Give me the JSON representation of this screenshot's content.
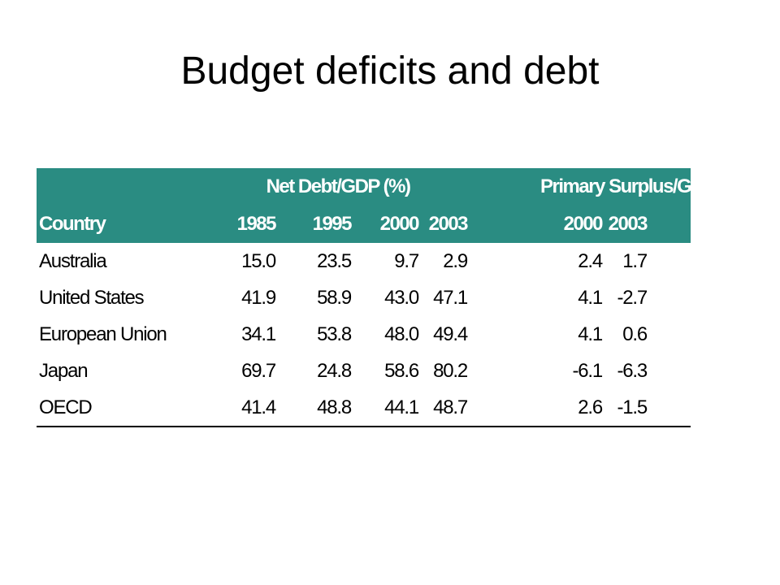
{
  "slide": {
    "title": "Budget deficits and debt"
  },
  "table": {
    "group_headers": {
      "net_debt": "Net Debt/GDP (%)",
      "primary_surplus": "Primary Surplus/GDP (%)"
    },
    "columns": {
      "country": "Country",
      "nd_1985": "1985",
      "nd_1995": "1995",
      "nd_2000": "2000",
      "nd_2003": "2003",
      "ps_2000": "2000",
      "ps_2003": "2003"
    },
    "rows": [
      {
        "country": "Australia",
        "nd_1985": "15.0",
        "nd_1995": "23.5",
        "nd_2000": "9.7",
        "nd_2003": "2.9",
        "ps_2000": "2.4",
        "ps_2003": "1.7"
      },
      {
        "country": "United States",
        "nd_1985": "41.9",
        "nd_1995": "58.9",
        "nd_2000": "43.0",
        "nd_2003": "47.1",
        "ps_2000": "4.1",
        "ps_2003": "-2.7"
      },
      {
        "country": "European Union",
        "nd_1985": "34.1",
        "nd_1995": "53.8",
        "nd_2000": "48.0",
        "nd_2003": "49.4",
        "ps_2000": "4.1",
        "ps_2003": "0.6"
      },
      {
        "country": "Japan",
        "nd_1985": "69.7",
        "nd_1995": "24.8",
        "nd_2000": "58.6",
        "nd_2003": "80.2",
        "ps_2000": "-6.1",
        "ps_2003": "-6.3"
      },
      {
        "country": "OECD",
        "nd_1985": "41.4",
        "nd_1995": "48.8",
        "nd_2000": "44.1",
        "nd_2003": "48.7",
        "ps_2000": "2.6",
        "ps_2003": "-1.5"
      }
    ]
  },
  "colors": {
    "header_background": "#2a8c82",
    "header_text": "#ffffff",
    "body_text": "#000000"
  }
}
